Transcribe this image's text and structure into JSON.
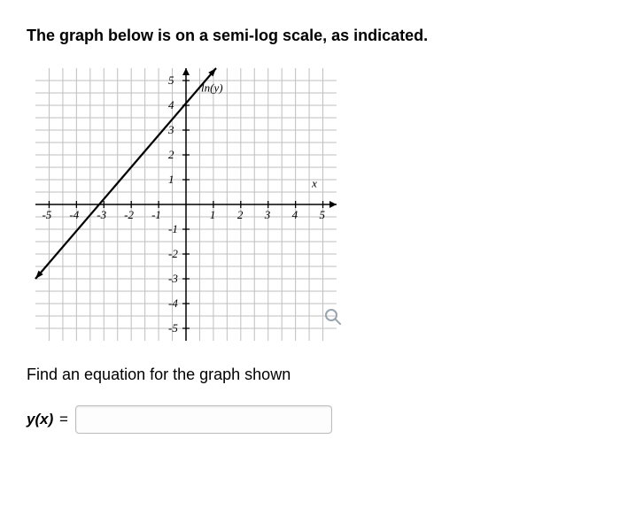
{
  "heading_text": "The graph below is on a semi-log scale, as indicated.",
  "prompt_text": "Find an equation for the graph shown",
  "answer_label": "y(x)",
  "answer_eq": " = ",
  "answer_value": "",
  "chart": {
    "type": "line",
    "x_axis_label": "x",
    "y_axis_label": "ln(y)",
    "xlim": [
      -5.5,
      5.5
    ],
    "ylim": [
      -5.5,
      5.5
    ],
    "x_ticks": [
      -5,
      -4,
      -3,
      -2,
      -1,
      1,
      2,
      3,
      4,
      5
    ],
    "y_ticks": [
      -5,
      -4,
      -3,
      -2,
      -1,
      1,
      2,
      3,
      4,
      5
    ],
    "tick_labels_x": [
      "-5",
      "-4",
      "-3",
      "-2",
      "-1",
      "1",
      "2",
      "3",
      "4",
      "5"
    ],
    "tick_labels_y": [
      "-5",
      "-4",
      "-3",
      "-2",
      "-1",
      "1",
      "2",
      "3",
      "4",
      "5"
    ],
    "grid_color": "#bfbfbf",
    "axis_color": "#000000",
    "grid_width": 1,
    "axis_width": 1.5,
    "line_color": "#000000",
    "line_width": 2.2,
    "line_points": [
      [
        -5.5,
        -3
      ],
      [
        1.1,
        5.5
      ]
    ],
    "background_color": "#ffffff",
    "label_fontsize": 13
  }
}
